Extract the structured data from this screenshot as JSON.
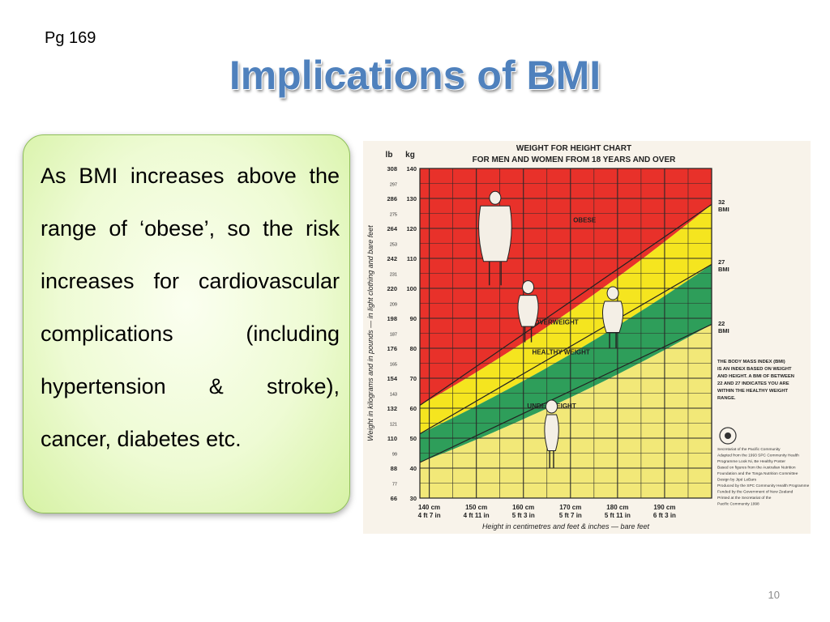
{
  "page_ref": "Pg 169",
  "title": "Implications of BMI",
  "body_text": "As BMI increases above the range of ‘obese’, so the risk increases for cardiovascular complications (including hypertension & stroke), cancer, diabetes etc.",
  "slide_number": "10",
  "colors": {
    "title": "#4f81bd",
    "obese": "#e8312a",
    "overweight": "#f5e51f",
    "healthy": "#2e9e5a",
    "underweight": "#f2e878",
    "grid": "#2a2a2a"
  },
  "chart_data": {
    "type": "area",
    "title": "WEIGHT FOR HEIGHT CHART",
    "subtitle": "FOR MEN AND WOMEN FROM 18 YEARS AND OVER",
    "xlabel": "Height in centimetres and feet & inches — bare feet",
    "ylabel": "Weight in kilograms and in pounds — in light clothing and bare feet",
    "xlim": [
      138,
      200
    ],
    "ylim": [
      30,
      140
    ],
    "x_ticks": [
      {
        "value": 140,
        "cm": "140 cm",
        "ft": "4 ft 7 in"
      },
      {
        "value": 150,
        "cm": "150 cm",
        "ft": "4 ft 11 in"
      },
      {
        "value": 160,
        "cm": "160 cm",
        "ft": "5 ft 3 in"
      },
      {
        "value": 170,
        "cm": "170 cm",
        "ft": "5 ft 7 in"
      },
      {
        "value": 180,
        "cm": "180 cm",
        "ft": "5 ft 11 in"
      },
      {
        "value": 190,
        "cm": "190 cm",
        "ft": "6 ft 3 in"
      }
    ],
    "y_unit_labels": {
      "lb": "lb",
      "kg": "kg"
    },
    "y_ticks_kg": [
      {
        "kg": 140,
        "label": "140",
        "lb": "308"
      },
      {
        "kg": 130,
        "label": "130",
        "lb": "286"
      },
      {
        "kg": 120,
        "label": "120",
        "lb": "264"
      },
      {
        "kg": 110,
        "label": "110",
        "lb": "242"
      },
      {
        "kg": 100,
        "label": "100",
        "lb": "220"
      },
      {
        "kg": 90,
        "label": "90",
        "lb": "198"
      },
      {
        "kg": 80,
        "label": "80",
        "lb": "176"
      },
      {
        "kg": 70,
        "label": "70",
        "lb": "154"
      },
      {
        "kg": 60,
        "label": "60",
        "lb": "132"
      },
      {
        "kg": 50,
        "label": "50",
        "lb": "110"
      },
      {
        "kg": 40,
        "label": "40",
        "lb": "88"
      },
      {
        "kg": 30,
        "label": "30",
        "lb": "66"
      }
    ],
    "y_minor_lb": [
      {
        "kg": 135,
        "lb": "297"
      },
      {
        "kg": 125,
        "lb": "275"
      },
      {
        "kg": 115,
        "lb": "253"
      },
      {
        "kg": 105,
        "lb": "231"
      },
      {
        "kg": 95,
        "lb": "209"
      },
      {
        "kg": 85,
        "lb": "187"
      },
      {
        "kg": 75,
        "lb": "165"
      },
      {
        "kg": 65,
        "lb": "143"
      },
      {
        "kg": 55,
        "lb": "121"
      },
      {
        "kg": 45,
        "lb": "99"
      },
      {
        "kg": 35,
        "lb": "77"
      }
    ],
    "bands": [
      {
        "name": "OBESE",
        "bmi_min": 32,
        "label_at": [
          173,
          122
        ]
      },
      {
        "name": "OVERWEIGHT",
        "bmi_min": 27,
        "label_at": [
          167,
          88
        ]
      },
      {
        "name": "HEALTHY WEIGHT",
        "bmi_min": 22,
        "label_at": [
          168,
          78
        ]
      },
      {
        "name": "UNDERWEIGHT",
        "bmi_min": 0,
        "label_at": [
          166,
          60
        ]
      }
    ],
    "bmi_lines": [
      {
        "bmi": 32,
        "label_value": "32",
        "label_unit": "BMI"
      },
      {
        "bmi": 27,
        "label_value": "27",
        "label_unit": "BMI"
      },
      {
        "bmi": 22,
        "label_value": "22",
        "label_unit": "BMI"
      }
    ],
    "note_lines": [
      "THE BODY MASS INDEX (BMI)",
      "IS AN INDEX BASED ON WEIGHT",
      "AND HEIGHT. A BMI OF BETWEEN",
      "22 AND 27 INDICATES YOU ARE",
      "WITHIN THE HEALTHY WEIGHT",
      "RANGE."
    ],
    "credits": [
      "Secretariat of the Pacific Community",
      "Adapted from the 1993 SPC Community Health",
      "Programme Look Ni, Be Healthy Poster",
      "Based on figures from the Australian Nutrition",
      "Foundation and the Tonga Nutrition Committee",
      "Design by Jipé LeBars",
      "Produced by the SPC Community Health Programme",
      "Funded by the Government of New Zealand",
      "Printed at the Secretariat of the",
      "Pacific Community 1998"
    ],
    "figures": [
      {
        "name": "obese-figure",
        "x": 154,
        "kg": 101
      },
      {
        "name": "overweight-figure",
        "x": 161,
        "kg": 82
      },
      {
        "name": "healthy-figure",
        "x": 179,
        "kg": 80
      },
      {
        "name": "underweight-figure",
        "x": 166,
        "kg": 40
      }
    ]
  }
}
